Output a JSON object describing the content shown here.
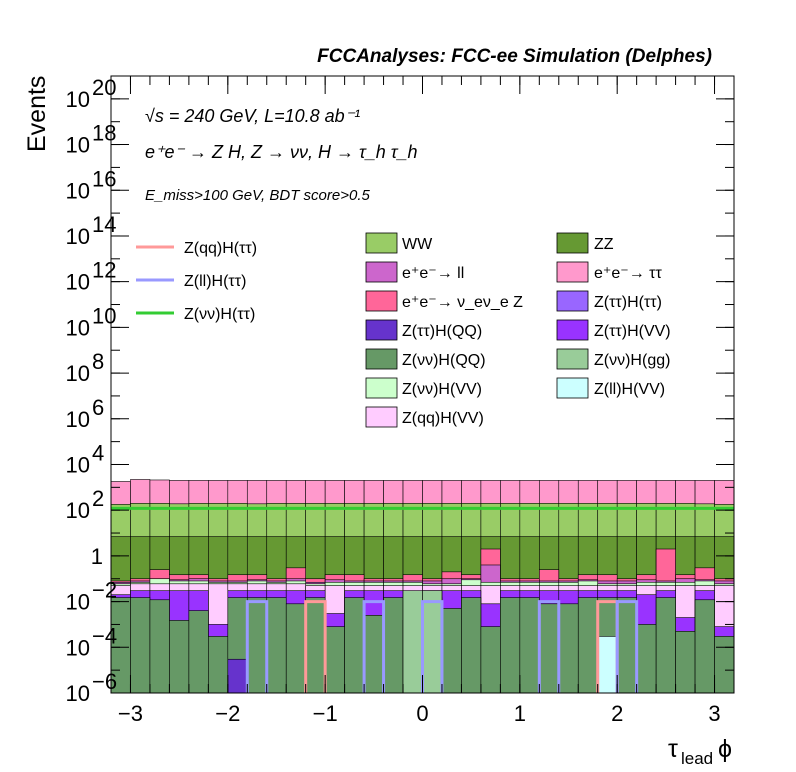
{
  "chart_data": {
    "type": "area",
    "title": "FCCAnalyses: FCC-ee Simulation (Delphes)",
    "xlabel": "τ_lead ϕ",
    "ylabel": "Events",
    "yscale": "log",
    "xlim": [
      -3.2,
      3.2
    ],
    "ylim": [
      1e-06,
      1e+21
    ],
    "x_ticks": [
      "−3",
      "−2",
      "−1",
      "0",
      "1",
      "2",
      "3"
    ],
    "y_ticks": [
      {
        "base": "10",
        "exp": "−6"
      },
      {
        "base": "10",
        "exp": "−4"
      },
      {
        "base": "10",
        "exp": "−2"
      },
      {
        "base": "1",
        "exp": ""
      },
      {
        "base": "10",
        "exp": "2"
      },
      {
        "base": "10",
        "exp": "4"
      },
      {
        "base": "10",
        "exp": "6"
      },
      {
        "base": "10",
        "exp": "8"
      },
      {
        "base": "10",
        "exp": "10"
      },
      {
        "base": "10",
        "exp": "12"
      },
      {
        "base": "10",
        "exp": "14"
      },
      {
        "base": "10",
        "exp": "16"
      },
      {
        "base": "10",
        "exp": "18"
      },
      {
        "base": "10",
        "exp": "20"
      }
    ],
    "annotations": [
      "√s = 240 GeV, L=10.8 ab⁻¹",
      "e⁺e⁻ → Z H, Z → νν, H → τ_h τ_h",
      "E_miss>100 GeV, BDT score>0.5"
    ],
    "stacked_series_totals": [
      {
        "name": "Z(νν)H(QQ)",
        "color": "#669966",
        "values": [
          0.015,
          0.015,
          0.012,
          0.0015,
          0.004,
          0.0003,
          0.015,
          0.015,
          0.015,
          0.008,
          0.015,
          0.0008,
          0.015,
          0.0025,
          0.015,
          0.0015,
          0.015,
          0.005,
          0.015,
          0.0008,
          0.015,
          0.015,
          0.008,
          0.008,
          0.015,
          0.015,
          0.015,
          0.001,
          0.015,
          0.0005,
          0.012,
          0.0003
        ]
      },
      {
        "name": "Z(ττ)H(VV)",
        "color": "#9933ff",
        "values": [
          0.02,
          0.03,
          0.03,
          0.03,
          0.03,
          0.001,
          0.03,
          0.03,
          0.03,
          0.03,
          0.03,
          0.003,
          0.03,
          0.03,
          0.03,
          0.001,
          0.03,
          0.03,
          0.03,
          0.008,
          0.03,
          0.03,
          0.03,
          0.03,
          0.03,
          0.03,
          0.03,
          0.02,
          0.03,
          0.002,
          0.03,
          0.0008
        ]
      },
      {
        "name": "Z(qq)H(VV)",
        "color": "#ffccff",
        "values": [
          0.05,
          0.06,
          0.06,
          0.06,
          0.06,
          0.06,
          0.06,
          0.06,
          0.06,
          0.06,
          0.05,
          0.05,
          0.05,
          0.05,
          0.05,
          0.05,
          0.05,
          0.05,
          0.05,
          0.05,
          0.05,
          0.05,
          0.05,
          0.05,
          0.05,
          0.05,
          0.05,
          0.05,
          0.05,
          0.05,
          0.05,
          0.05
        ]
      },
      {
        "name": "Z(νν)H(VV)",
        "color": "#ccffcc",
        "values": [
          0.06,
          0.07,
          0.1,
          0.08,
          0.08,
          0.07,
          0.07,
          0.08,
          0.07,
          0.08,
          0.06,
          0.07,
          0.07,
          0.07,
          0.07,
          0.07,
          0.06,
          0.06,
          0.09,
          0.07,
          0.07,
          0.07,
          0.07,
          0.07,
          0.08,
          0.06,
          0.06,
          0.07,
          0.07,
          0.07,
          0.08,
          0.06
        ]
      },
      {
        "name": "e⁺e⁻ → ll",
        "color": "#cc66cc",
        "values": [
          0.07,
          0.08,
          0.1,
          0.09,
          0.1,
          0.08,
          0.08,
          0.09,
          0.08,
          0.1,
          0.07,
          0.09,
          0.08,
          0.08,
          0.08,
          0.08,
          0.08,
          0.1,
          0.1,
          0.4,
          0.08,
          0.08,
          0.08,
          0.08,
          0.09,
          0.08,
          0.08,
          0.09,
          0.08,
          0.1,
          0.09,
          0.08
        ]
      },
      {
        "name": "e⁺e⁻ → ν_e ν_e Z",
        "color": "#ff6699",
        "values": [
          0.08,
          0.1,
          0.25,
          0.15,
          0.15,
          0.1,
          0.15,
          0.15,
          0.1,
          0.3,
          0.1,
          0.15,
          0.15,
          0.1,
          0.1,
          0.15,
          0.1,
          0.2,
          0.15,
          2,
          0.1,
          0.1,
          0.25,
          0.1,
          0.15,
          0.15,
          0.1,
          0.15,
          2,
          0.15,
          0.3,
          0.1
        ]
      },
      {
        "name": "ZZ",
        "color": "#669933",
        "values": [
          7,
          7,
          7,
          7,
          7,
          7,
          7,
          7,
          7,
          7,
          7,
          7,
          7,
          7,
          7,
          7,
          7,
          7,
          7,
          7,
          7,
          7,
          7,
          7,
          7,
          7,
          7,
          7,
          7,
          7,
          7,
          7
        ]
      },
      {
        "name": "WW",
        "color": "#99cc66",
        "values": [
          180,
          200,
          200,
          190,
          200,
          200,
          200,
          190,
          200,
          200,
          200,
          200,
          200,
          200,
          200,
          200,
          200,
          200,
          200,
          200,
          200,
          200,
          200,
          200,
          200,
          200,
          200,
          200,
          200,
          200,
          190,
          180
        ]
      },
      {
        "name": "e⁺e⁻ → ττ",
        "color": "#ff99cc",
        "values": [
          1800,
          2200,
          2100,
          2000,
          2000,
          2000,
          2000,
          2000,
          2000,
          2000,
          2000,
          2000,
          2000,
          2000,
          2000,
          2000,
          2000,
          2000,
          2000,
          2000,
          2000,
          2000,
          2000,
          2000,
          2000,
          2000,
          2000,
          2000,
          2000,
          2000,
          2000,
          2000
        ]
      }
    ],
    "extra_filled_series": [
      {
        "name": "Z(νν)H(gg)",
        "color": "#99cc99",
        "bins": [
          15,
          16
        ],
        "value": 0.03
      },
      {
        "name": "Z(ll)H(VV)",
        "color": "#ccffff",
        "bins": [
          25
        ],
        "value": 0.0003
      },
      {
        "name": "Z(ττ)H(QQ)",
        "color": "#6633cc",
        "bins": [
          6
        ],
        "value": 3e-05
      }
    ],
    "line_series": [
      {
        "name": "Z(qq)H(ττ)",
        "color": "#ff9999",
        "bins": [
          10,
          25
        ],
        "value": 0.01
      },
      {
        "name": "Z(ll)H(ττ)",
        "color": "#9999ff",
        "bins": [
          7,
          13,
          16,
          22,
          26
        ],
        "value": 0.01
      },
      {
        "name": "Z(νν)H(ττ)",
        "color": "#33cc33",
        "value": 120
      }
    ],
    "nbins": 32,
    "legend_left": [
      {
        "label": "Z(qq)H(ττ)",
        "color": "#ff9999"
      },
      {
        "label": "Z(ll)H(ττ)",
        "color": "#9999ff"
      },
      {
        "label": "Z(νν)H(ττ)",
        "color": "#33cc33"
      }
    ],
    "legend_mid": [
      {
        "label": "WW",
        "color": "#99cc66"
      },
      {
        "label": "e⁺e⁻→ ll",
        "color": "#cc66cc"
      },
      {
        "label": "e⁺e⁻→ ν_eν_e Z",
        "color": "#ff6699"
      },
      {
        "label": "Z(ττ)H(QQ)",
        "color": "#6633cc"
      },
      {
        "label": "Z(νν)H(QQ)",
        "color": "#669966"
      },
      {
        "label": "Z(νν)H(VV)",
        "color": "#ccffcc"
      },
      {
        "label": "Z(qq)H(VV)",
        "color": "#ffccff"
      }
    ],
    "legend_right": [
      {
        "label": "ZZ",
        "color": "#669933"
      },
      {
        "label": "e⁺e⁻→ ττ",
        "color": "#ff99cc"
      },
      {
        "label": "Z(ττ)H(ττ)",
        "color": "#9966ff"
      },
      {
        "label": "Z(ττ)H(VV)",
        "color": "#9933ff"
      },
      {
        "label": "Z(νν)H(gg)",
        "color": "#99cc99"
      },
      {
        "label": "Z(ll)H(VV)",
        "color": "#ccffff"
      }
    ],
    "legend_placement": "top",
    "grid": false
  }
}
